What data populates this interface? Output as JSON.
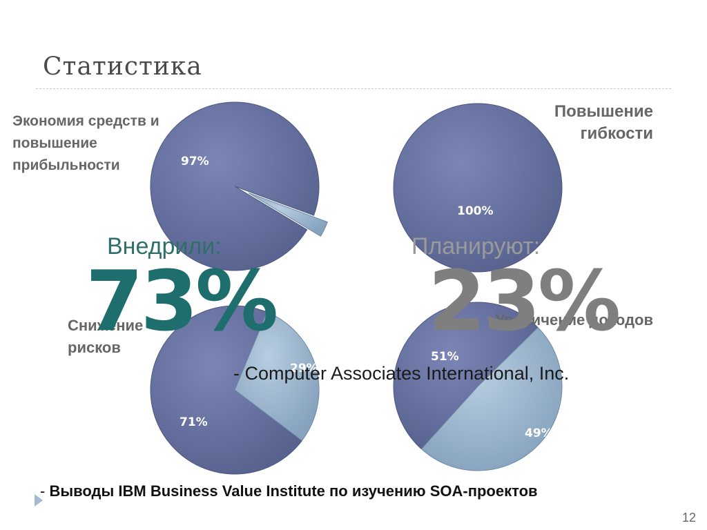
{
  "slide": {
    "title": "Статистика",
    "page_number": "12"
  },
  "stats": {
    "implemented_caption": "Внедрили:",
    "implemented_value": "73%",
    "planned_caption": "Планируют:",
    "planned_value": "23%",
    "quote": "- Computer Associates International, Inc."
  },
  "source": {
    "dash": "- ",
    "text": "Выводы IBM Business Value Institute по изучению SOA-проектов"
  },
  "colors": {
    "main_slice": "#6872a2",
    "secondary_slice": "#9fb8cf",
    "implemented": "#1e6e6e",
    "planned": "#7f7f7f"
  },
  "chart_data": [
    {
      "type": "pie",
      "title": "Экономия средств и повышение прибыльности",
      "slices": [
        {
          "label": "97%",
          "value": 97
        },
        {
          "label": "",
          "value": 3
        }
      ]
    },
    {
      "type": "pie",
      "title": "Повышение гибкости",
      "slices": [
        {
          "label": "100%",
          "value": 100
        }
      ]
    },
    {
      "type": "pie",
      "title": "Снижение рисков",
      "slices": [
        {
          "label": "71%",
          "value": 71
        },
        {
          "label": "29%",
          "value": 29
        }
      ]
    },
    {
      "type": "pie",
      "title": "Увеличение доходов",
      "slices": [
        {
          "label": "51%",
          "value": 51
        },
        {
          "label": "49%",
          "value": 49
        }
      ]
    }
  ]
}
